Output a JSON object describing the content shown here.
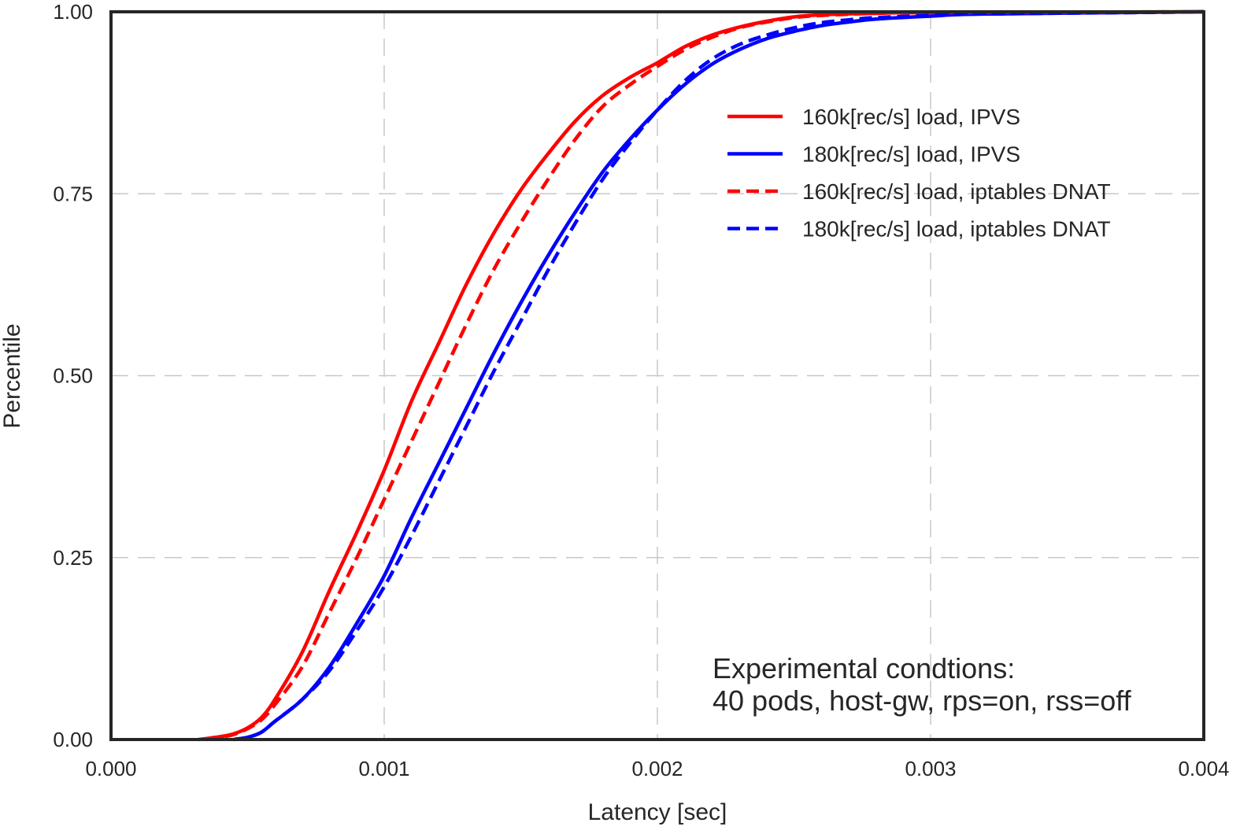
{
  "chart_data": {
    "type": "line",
    "title": "",
    "xlabel": "Latency [sec]",
    "ylabel": "Percentile",
    "xlim": [
      0.0,
      0.004
    ],
    "ylim": [
      0.0,
      1.0
    ],
    "x_ticks": [
      0.0,
      0.001,
      0.002,
      0.003,
      0.004
    ],
    "x_tick_labels": [
      "0.000",
      "0.001",
      "0.002",
      "0.003",
      "0.004"
    ],
    "y_ticks": [
      0.0,
      0.25,
      0.5,
      0.75,
      1.0
    ],
    "y_tick_labels": [
      "0.00",
      "0.25",
      "0.50",
      "0.75",
      "1.00"
    ],
    "grid": true,
    "legend_position": "upper-right",
    "annotation": [
      "Experimental condtions:",
      "40 pods, host-gw, rps=on, rss=off"
    ],
    "series": [
      {
        "name": "160k[rec/s] load, IPVS",
        "color": "#ff0000",
        "style": "solid",
        "x": [
          0.00032,
          0.0004,
          0.00045,
          0.0005,
          0.00055,
          0.0006,
          0.0007,
          0.0008,
          0.0009,
          0.001,
          0.0011,
          0.0012,
          0.0013,
          0.0014,
          0.0015,
          0.0016,
          0.0017,
          0.0018,
          0.0019,
          0.002,
          0.0021,
          0.0022,
          0.0023,
          0.0024,
          0.0025,
          0.0026,
          0.0028,
          0.003,
          0.004
        ],
        "y": [
          0.0,
          0.004,
          0.008,
          0.016,
          0.03,
          0.055,
          0.12,
          0.205,
          0.285,
          0.37,
          0.465,
          0.545,
          0.625,
          0.695,
          0.755,
          0.805,
          0.85,
          0.885,
          0.91,
          0.93,
          0.952,
          0.968,
          0.979,
          0.987,
          0.993,
          0.996,
          0.998,
          0.999,
          1.0
        ]
      },
      {
        "name": "180k[rec/s] load, IPVS",
        "color": "#0000ff",
        "style": "solid",
        "x": [
          0.00045,
          0.0005,
          0.00055,
          0.0006,
          0.0007,
          0.0008,
          0.0009,
          0.001,
          0.0011,
          0.0012,
          0.0013,
          0.0014,
          0.0015,
          0.0016,
          0.0017,
          0.0018,
          0.0019,
          0.002,
          0.0021,
          0.0022,
          0.0023,
          0.0024,
          0.0025,
          0.0026,
          0.0027,
          0.0028,
          0.003,
          0.0032,
          0.004
        ],
        "y": [
          0.0,
          0.003,
          0.01,
          0.025,
          0.055,
          0.1,
          0.16,
          0.225,
          0.305,
          0.38,
          0.455,
          0.53,
          0.6,
          0.665,
          0.725,
          0.78,
          0.825,
          0.865,
          0.9,
          0.928,
          0.948,
          0.963,
          0.973,
          0.981,
          0.986,
          0.99,
          0.994,
          0.997,
          1.0
        ]
      },
      {
        "name": "160k[rec/s] load, iptables DNAT",
        "color": "#ff0000",
        "style": "dashed",
        "x": [
          0.00035,
          0.0004,
          0.00045,
          0.0005,
          0.00055,
          0.0006,
          0.0007,
          0.0008,
          0.0009,
          0.001,
          0.0011,
          0.0012,
          0.0013,
          0.0014,
          0.0015,
          0.0016,
          0.0017,
          0.0018,
          0.0019,
          0.002,
          0.0021,
          0.0022,
          0.0023,
          0.0024,
          0.0025,
          0.0026,
          0.0028,
          0.003,
          0.004
        ],
        "y": [
          0.0,
          0.003,
          0.007,
          0.015,
          0.027,
          0.048,
          0.1,
          0.175,
          0.25,
          0.33,
          0.41,
          0.49,
          0.57,
          0.645,
          0.71,
          0.77,
          0.825,
          0.87,
          0.9,
          0.925,
          0.948,
          0.965,
          0.978,
          0.986,
          0.992,
          0.995,
          0.998,
          0.999,
          1.0
        ]
      },
      {
        "name": "180k[rec/s] load, iptables DNAT",
        "color": "#0000ff",
        "style": "dashed",
        "x": [
          0.00045,
          0.0005,
          0.00055,
          0.0006,
          0.0007,
          0.0008,
          0.0009,
          0.001,
          0.0011,
          0.0012,
          0.0013,
          0.0014,
          0.0015,
          0.0016,
          0.0017,
          0.0018,
          0.0019,
          0.002,
          0.0021,
          0.0022,
          0.0023,
          0.0024,
          0.0025,
          0.0026,
          0.0027,
          0.0028,
          0.003,
          0.0032,
          0.004
        ],
        "y": [
          0.0,
          0.003,
          0.01,
          0.025,
          0.055,
          0.095,
          0.15,
          0.21,
          0.28,
          0.355,
          0.43,
          0.505,
          0.575,
          0.645,
          0.71,
          0.77,
          0.82,
          0.865,
          0.905,
          0.935,
          0.955,
          0.968,
          0.978,
          0.985,
          0.989,
          0.992,
          0.995,
          0.997,
          1.0
        ]
      }
    ]
  }
}
